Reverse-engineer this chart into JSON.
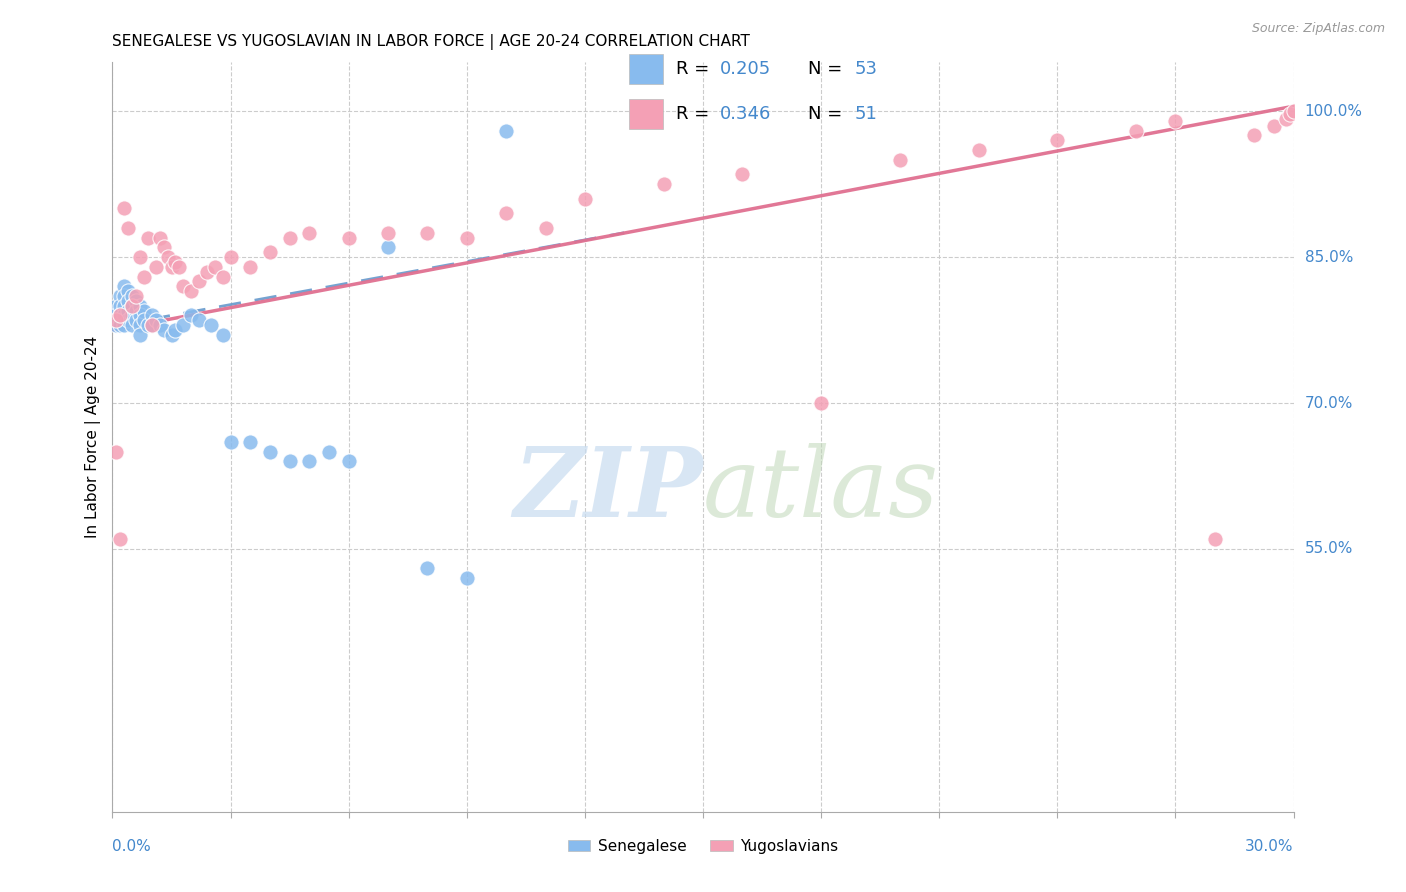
{
  "title": "SENEGALESE VS YUGOSLAVIAN IN LABOR FORCE | AGE 20-24 CORRELATION CHART",
  "source": "Source: ZipAtlas.com",
  "ylabel": "In Labor Force | Age 20-24",
  "right_ytick_vals": [
    1.0,
    0.85,
    0.7,
    0.55
  ],
  "right_ytick_labels": [
    "100.0%",
    "85.0%",
    "70.0%",
    "55.0%"
  ],
  "xmin": 0.0,
  "xmax": 0.3,
  "ymin": 0.28,
  "ymax": 1.05,
  "blue_color": "#88BBEE",
  "pink_color": "#F4A0B5",
  "trend_blue_color": "#6699CC",
  "trend_pink_color": "#E07090",
  "sen_x": [
    0.001,
    0.001,
    0.001,
    0.002,
    0.002,
    0.002,
    0.002,
    0.003,
    0.003,
    0.003,
    0.003,
    0.003,
    0.004,
    0.004,
    0.004,
    0.004,
    0.005,
    0.005,
    0.005,
    0.005,
    0.006,
    0.006,
    0.006,
    0.007,
    0.007,
    0.007,
    0.007,
    0.008,
    0.008,
    0.009,
    0.01,
    0.01,
    0.011,
    0.012,
    0.013,
    0.015,
    0.016,
    0.018,
    0.02,
    0.022,
    0.025,
    0.028,
    0.03,
    0.035,
    0.04,
    0.045,
    0.05,
    0.055,
    0.06,
    0.07,
    0.08,
    0.09,
    0.1
  ],
  "sen_y": [
    0.8,
    0.79,
    0.78,
    0.81,
    0.8,
    0.79,
    0.78,
    0.82,
    0.81,
    0.8,
    0.79,
    0.78,
    0.815,
    0.805,
    0.795,
    0.785,
    0.81,
    0.8,
    0.79,
    0.78,
    0.805,
    0.795,
    0.785,
    0.8,
    0.79,
    0.78,
    0.77,
    0.795,
    0.785,
    0.78,
    0.79,
    0.78,
    0.785,
    0.78,
    0.775,
    0.77,
    0.775,
    0.78,
    0.79,
    0.785,
    0.78,
    0.77,
    0.66,
    0.66,
    0.65,
    0.64,
    0.64,
    0.65,
    0.64,
    0.86,
    0.53,
    0.52,
    0.98
  ],
  "yug_x": [
    0.001,
    0.002,
    0.003,
    0.004,
    0.005,
    0.006,
    0.007,
    0.008,
    0.009,
    0.01,
    0.011,
    0.012,
    0.013,
    0.014,
    0.015,
    0.016,
    0.017,
    0.018,
    0.02,
    0.022,
    0.024,
    0.026,
    0.028,
    0.03,
    0.035,
    0.04,
    0.045,
    0.05,
    0.06,
    0.07,
    0.08,
    0.09,
    0.1,
    0.11,
    0.12,
    0.14,
    0.16,
    0.18,
    0.2,
    0.22,
    0.24,
    0.26,
    0.27,
    0.28,
    0.29,
    0.295,
    0.298,
    0.299,
    0.3,
    0.001,
    0.002
  ],
  "yug_y": [
    0.785,
    0.79,
    0.9,
    0.88,
    0.8,
    0.81,
    0.85,
    0.83,
    0.87,
    0.78,
    0.84,
    0.87,
    0.86,
    0.85,
    0.84,
    0.845,
    0.84,
    0.82,
    0.815,
    0.825,
    0.835,
    0.84,
    0.83,
    0.85,
    0.84,
    0.855,
    0.87,
    0.875,
    0.87,
    0.875,
    0.875,
    0.87,
    0.895,
    0.88,
    0.91,
    0.925,
    0.935,
    0.7,
    0.95,
    0.96,
    0.97,
    0.98,
    0.99,
    0.56,
    0.975,
    0.985,
    0.992,
    0.997,
    1.0,
    0.65,
    0.56
  ]
}
